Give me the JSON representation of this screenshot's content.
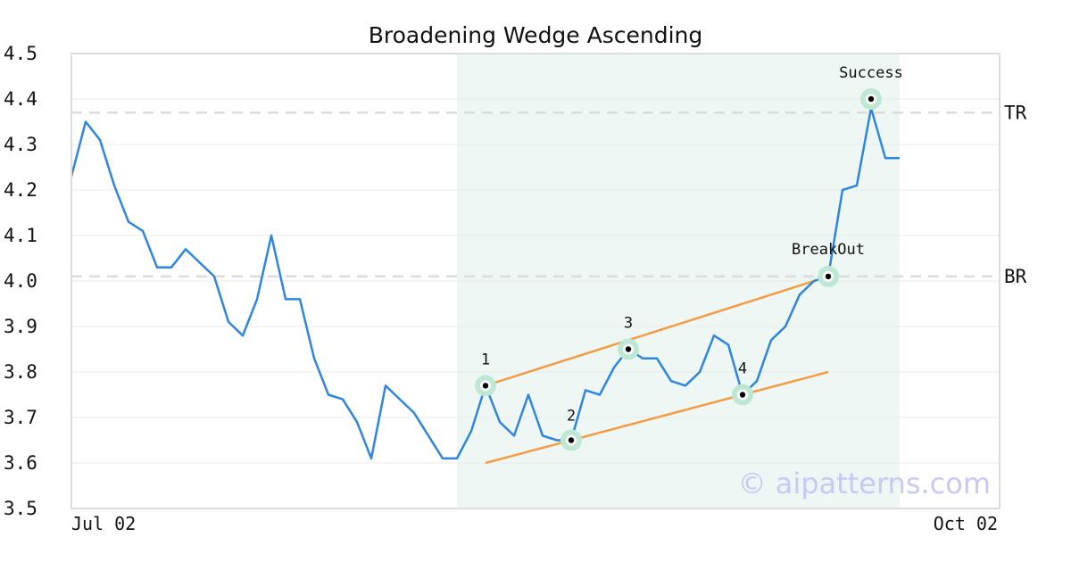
{
  "chart_data": {
    "type": "line",
    "title": "Broadening Wedge Ascending",
    "ylim": [
      3.5,
      4.5
    ],
    "yticks": [
      "3.5",
      "3.6",
      "3.7",
      "3.8",
      "3.9",
      "4.0",
      "4.1",
      "4.2",
      "4.3",
      "4.4",
      "4.5"
    ],
    "x_start_label": "Jul 02",
    "x_end_label": "Oct 02",
    "grid": true,
    "series": [
      {
        "color": "#2e86de",
        "values": [
          4.23,
          4.35,
          4.31,
          4.21,
          4.13,
          4.11,
          4.03,
          4.03,
          4.07,
          4.04,
          4.01,
          3.91,
          3.88,
          3.96,
          4.1,
          3.96,
          3.96,
          3.83,
          3.75,
          3.74,
          3.69,
          3.61,
          3.77,
          3.74,
          3.71,
          3.66,
          3.61,
          3.61,
          3.67,
          3.77,
          3.69,
          3.66,
          3.75,
          3.66,
          3.65,
          3.65,
          3.76,
          3.75,
          3.81,
          3.85,
          3.83,
          3.83,
          3.78,
          3.77,
          3.8,
          3.88,
          3.86,
          3.75,
          3.78,
          3.87,
          3.9,
          3.97,
          4.0,
          4.01,
          4.2,
          4.21,
          4.38,
          4.27,
          4.27
        ]
      }
    ],
    "pattern_region": {
      "start_index": 27,
      "end_index": 58,
      "color": "#eef7f3"
    },
    "levels": [
      {
        "label": "TR",
        "value": 4.37
      },
      {
        "label": "BR",
        "value": 4.01
      }
    ],
    "trendlines": [
      {
        "color": "#f39c45",
        "from": {
          "index": 29,
          "value": 3.77
        },
        "to": {
          "index": 53,
          "value": 4.01
        }
      },
      {
        "color": "#f39c45",
        "from": {
          "index": 29,
          "value": 3.6
        },
        "to": {
          "index": 53,
          "value": 3.8
        }
      }
    ],
    "points": [
      {
        "label": "1",
        "index": 29,
        "value": 3.77
      },
      {
        "label": "2",
        "index": 35,
        "value": 3.65
      },
      {
        "label": "3",
        "index": 39,
        "value": 3.85
      },
      {
        "label": "4",
        "index": 47,
        "value": 3.75
      },
      {
        "label": "BreakOut",
        "index": 53,
        "value": 4.01
      },
      {
        "label": "Success",
        "index": 56,
        "value": 4.4
      }
    ],
    "watermark": "© aipatterns.com"
  }
}
